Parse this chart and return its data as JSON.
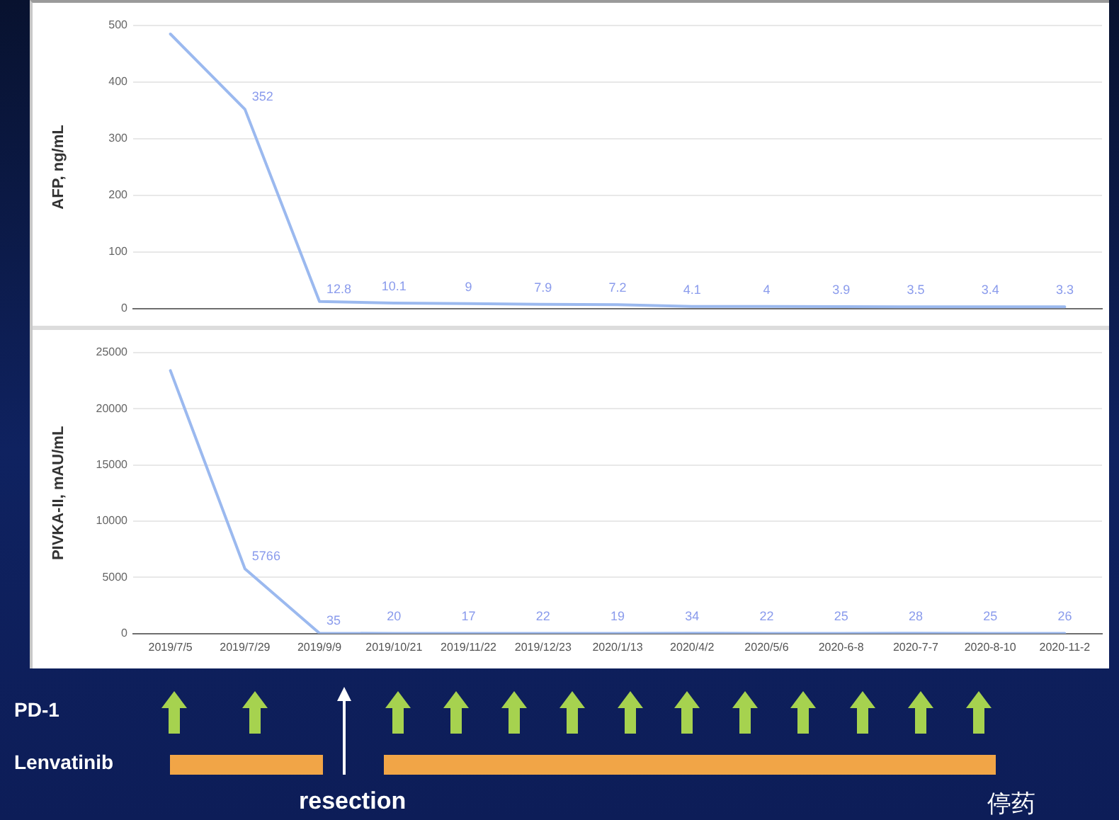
{
  "chart_data": [
    {
      "type": "line",
      "ylabel": "AFP, ng/mL",
      "categories": [
        "2019/7/5",
        "2019/7/29",
        "2019/9/9",
        "2019/10/21",
        "2019/11/22",
        "2019/12/23",
        "2020/1/13",
        "2020/4/2",
        "2020/5/6",
        "2020-6-8",
        "2020-7-7",
        "2020-8-10",
        "2020-11-2"
      ],
      "series": [
        {
          "color": "#9bb9ef",
          "values": [
            485,
            352,
            12.8,
            10.1,
            9,
            7.9,
            7.2,
            4.1,
            4,
            3.9,
            3.5,
            3.4,
            3.3
          ],
          "value_labels": [
            null,
            "352",
            "12.8",
            "10.1",
            "9",
            "7.9",
            "7.2",
            "4.1",
            "4",
            "3.9",
            "3.5",
            "3.4",
            "3.3"
          ]
        }
      ],
      "ylim": [
        0,
        500
      ],
      "yticks": [
        0,
        100,
        200,
        300,
        400,
        500
      ],
      "grid": "y",
      "marker": "none",
      "tick_labels": "y"
    },
    {
      "type": "line",
      "ylabel": "PIVKA-II, mAU/mL",
      "categories": [
        "2019/7/5",
        "2019/7/29",
        "2019/9/9",
        "2019/10/21",
        "2019/11/22",
        "2019/12/23",
        "2020/1/13",
        "2020/4/2",
        "2020/5/6",
        "2020-6-8",
        "2020-7-7",
        "2020-8-10",
        "2020-11-2"
      ],
      "series": [
        {
          "color": "#9bb9ef",
          "values": [
            23400,
            5766,
            35,
            20,
            17,
            22,
            19,
            34,
            22,
            25,
            28,
            25,
            26
          ],
          "value_labels": [
            null,
            "5766",
            "35",
            "20",
            "17",
            "22",
            "19",
            "34",
            "22",
            "25",
            "28",
            "25",
            "26"
          ]
        }
      ],
      "ylim": [
        0,
        25000
      ],
      "yticks": [
        0,
        5000,
        10000,
        15000,
        20000,
        25000
      ],
      "grid": "y",
      "marker": "none",
      "annotations": [
        "PD-1",
        "Lenvatinib",
        "resection",
        "停药"
      ]
    }
  ]
}
